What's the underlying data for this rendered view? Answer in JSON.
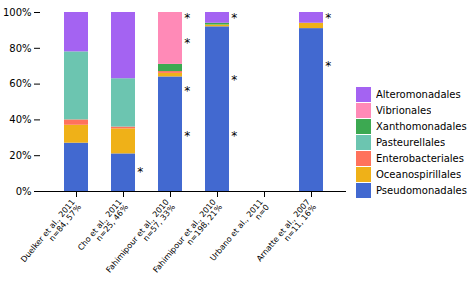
{
  "chart_data": {
    "type": "bar",
    "stacked": true,
    "categories": [
      "Duelker et al., 2011\nn=84, 57%",
      "Cho et al., 2011\nn=25, 46%",
      "Fahimipour et al., 2010\nn=57, 33%",
      "Fahimipour et al., 2010\nn=198, 21%",
      "Urbano et al., 2011\nn=0",
      "Arnatte et al., 2007\nn=11, 16%"
    ],
    "series": [
      {
        "name": "Pseudomonadales",
        "values": [
          27,
          21,
          64,
          92,
          0,
          91
        ]
      },
      {
        "name": "Oceanospirillales",
        "values": [
          10,
          14,
          2,
          1,
          0,
          3
        ]
      },
      {
        "name": "Enterobacteriales",
        "values": [
          3,
          1,
          1,
          0,
          0,
          0
        ]
      },
      {
        "name": "Pasteurellales",
        "values": [
          38,
          27,
          0,
          0,
          0,
          0
        ]
      },
      {
        "name": "Xanthomonadales",
        "values": [
          0,
          0,
          4,
          1,
          0,
          0
        ]
      },
      {
        "name": "Vibrionales",
        "values": [
          0,
          0,
          29,
          0,
          0,
          0
        ]
      },
      {
        "name": "Alteromonadales",
        "values": [
          22,
          37,
          0,
          6,
          0,
          6
        ]
      }
    ],
    "ylim": [
      0,
      100
    ],
    "yticks": [
      {
        "value": 0,
        "label": "0%"
      },
      {
        "value": 20,
        "label": "20%"
      },
      {
        "value": 40,
        "label": "40%"
      },
      {
        "value": 60,
        "label": "60%"
      },
      {
        "value": 80,
        "label": "80%"
      },
      {
        "value": 100,
        "label": "100%"
      }
    ],
    "annotations": [
      {
        "x": "Cho et al., 2011\nn=25, 46%",
        "y": 11,
        "text": "*"
      },
      {
        "x": "Fahimipour et al., 2010\nn=57, 33%",
        "y": 97,
        "text": "*"
      },
      {
        "x": "Fahimipour et al., 2010\nn=57, 33%",
        "y": 83,
        "text": "*"
      },
      {
        "x": "Fahimipour et al., 2010\nn=57, 33%",
        "y": 56,
        "text": "*"
      },
      {
        "x": "Fahimipour et al., 2010\nn=57, 33%",
        "y": 31,
        "text": "*"
      },
      {
        "x": "Fahimipour et al., 2010\nn=198, 21%",
        "y": 97,
        "text": "*"
      },
      {
        "x": "Fahimipour et al., 2010\nn=198, 21%",
        "y": 62,
        "text": "*"
      },
      {
        "x": "Fahimipour et al., 2010\nn=198, 21%",
        "y": 31,
        "text": "*"
      },
      {
        "x": "Arnatte et al., 2007\nn=11, 16%",
        "y": 97,
        "text": "*"
      },
      {
        "x": "Arnatte et al., 2007\nn=11, 16%",
        "y": 70,
        "text": "*"
      }
    ],
    "legend": "right"
  }
}
